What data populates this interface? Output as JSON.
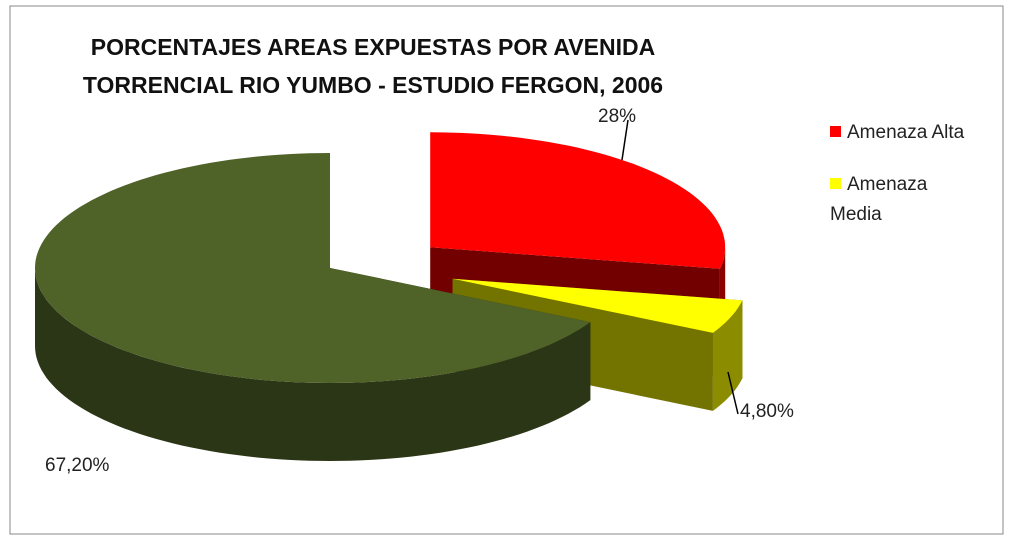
{
  "chart_data": {
    "type": "pie3d",
    "title": "PORCENTAJES AREAS EXPUESTAS POR AVENIDA TORRENCIAL RIO YUMBO - ESTUDIO FERGON, 2006",
    "categories": [
      "Amenaza Alta",
      "Amenaza Media",
      null
    ],
    "values": [
      28,
      4.8,
      67.2
    ],
    "value_labels": [
      "28%",
      "4,80%",
      "67,20%"
    ],
    "colors": [
      "#ff0000",
      "#ffff00",
      "#4f6228"
    ],
    "legend": "right"
  }
}
